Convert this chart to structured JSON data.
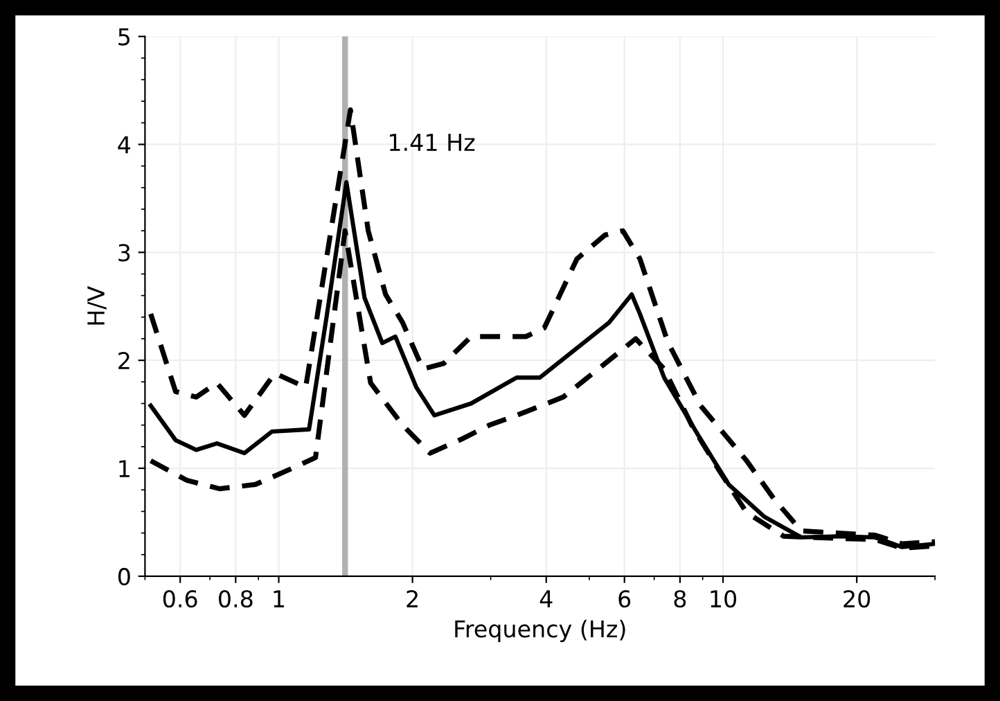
{
  "chart_data": {
    "type": "line",
    "xlabel": "Frequency (Hz)",
    "ylabel": "H/V",
    "log": "x",
    "xlim": [
      0.5,
      30
    ],
    "xticks": [
      0.6,
      0.8,
      1,
      2,
      4,
      6,
      8,
      10,
      20
    ],
    "ylim": [
      0,
      5
    ],
    "yticks": [
      0,
      1,
      2,
      3,
      4,
      5
    ],
    "grid": true,
    "ref_lines": [
      {
        "axis": "x",
        "value": 1.41,
        "label": "1.41 Hz",
        "color": "#b0b0b0"
      }
    ],
    "series": [
      {
        "color": "#000000",
        "line_style": "solid",
        "x": [
          0.515,
          0.586,
          0.652,
          0.726,
          0.837,
          0.965,
          1.17,
          1.28,
          1.42,
          1.56,
          1.71,
          1.83,
          2.04,
          2.24,
          2.71,
          3.43,
          3.87,
          5.54,
          6.23,
          6.5,
          7.37,
          8.9,
          10.3,
          12.4,
          15.0,
          18.2,
          22.0,
          25.3,
          30
        ],
        "values": [
          1.58,
          1.26,
          1.17,
          1.23,
          1.14,
          1.34,
          1.36,
          2.39,
          3.65,
          2.58,
          2.16,
          2.22,
          1.75,
          1.49,
          1.6,
          1.84,
          1.84,
          2.35,
          2.61,
          2.43,
          1.84,
          1.27,
          0.85,
          0.55,
          0.36,
          0.37,
          0.36,
          0.27,
          0.3
        ]
      },
      {
        "color": "#000000",
        "line_style": "dashed",
        "x": [
          0.515,
          0.586,
          0.652,
          0.726,
          0.837,
          0.98,
          1.15,
          1.45,
          1.59,
          1.74,
          1.9,
          2.11,
          2.35,
          2.71,
          3.6,
          3.96,
          4.69,
          5.42,
          5.95,
          6.5,
          7.51,
          8.9,
          11.3,
          13.0,
          15.0,
          18.2,
          22.0,
          25.3,
          30
        ],
        "values": [
          2.43,
          1.71,
          1.66,
          1.79,
          1.49,
          1.88,
          1.75,
          4.32,
          3.2,
          2.61,
          2.35,
          1.92,
          1.97,
          2.22,
          2.22,
          2.3,
          2.94,
          3.16,
          3.2,
          2.94,
          2.17,
          1.58,
          1.07,
          0.72,
          0.42,
          0.4,
          0.38,
          0.3,
          0.32
        ]
      },
      {
        "color": "#000000",
        "line_style": "dashed",
        "x": [
          0.515,
          0.62,
          0.736,
          0.886,
          1.1,
          1.21,
          1.41,
          1.61,
          1.9,
          2.19,
          2.58,
          2.98,
          3.43,
          4.37,
          5.54,
          6.36,
          7.37,
          8.5,
          9.8,
          11.3,
          13.7,
          18.2,
          22.0,
          25.3,
          30
        ],
        "values": [
          1.07,
          0.89,
          0.81,
          0.85,
          1.02,
          1.1,
          3.2,
          1.79,
          1.4,
          1.14,
          1.27,
          1.4,
          1.49,
          1.66,
          2.0,
          2.2,
          1.92,
          1.4,
          0.98,
          0.59,
          0.37,
          0.35,
          0.34,
          0.26,
          0.28
        ]
      }
    ]
  }
}
